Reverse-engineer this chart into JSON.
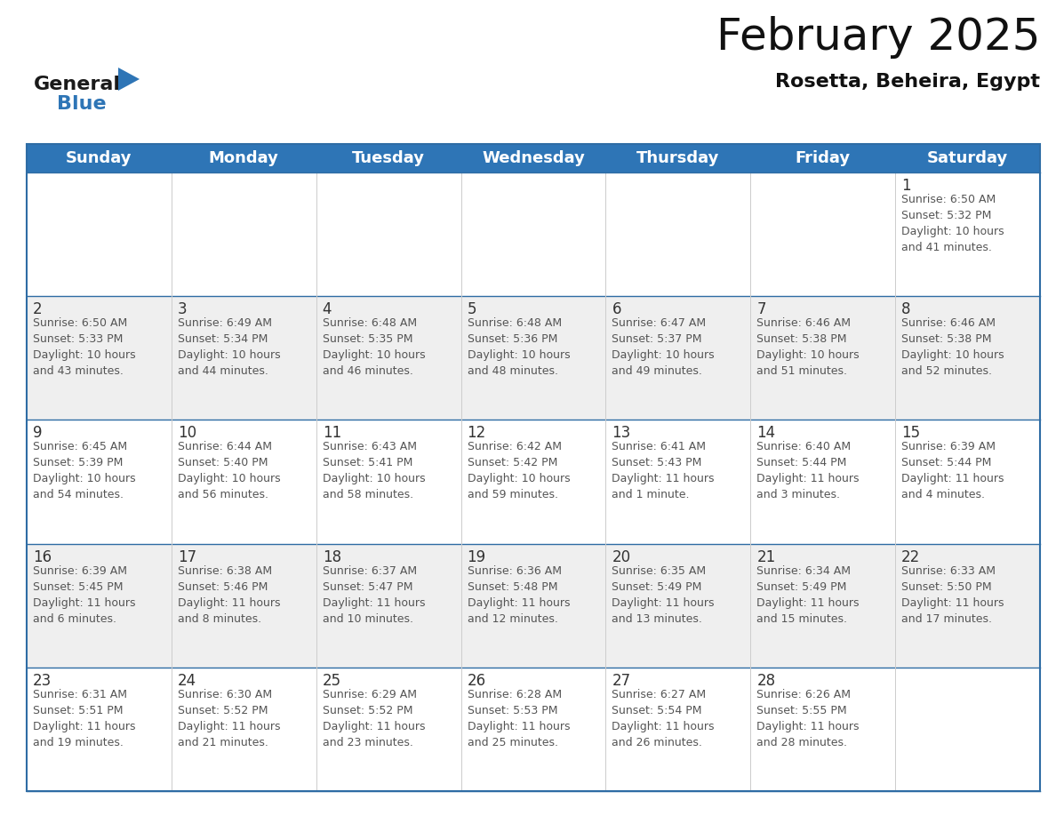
{
  "title": "February 2025",
  "subtitle": "Rosetta, Beheira, Egypt",
  "header_bg": "#2E75B6",
  "header_text_color": "#FFFFFF",
  "weekdays": [
    "Sunday",
    "Monday",
    "Tuesday",
    "Wednesday",
    "Thursday",
    "Friday",
    "Saturday"
  ],
  "bg_color": "#FFFFFF",
  "cell_bg_even": "#FFFFFF",
  "cell_bg_odd": "#EFEFEF",
  "border_color": "#2E6CA4",
  "row_line_color": "#2E6CA4",
  "col_line_color": "#CCCCCC",
  "day_text_color": "#333333",
  "info_text_color": "#555555",
  "calendar": [
    [
      {
        "day": "",
        "info": ""
      },
      {
        "day": "",
        "info": ""
      },
      {
        "day": "",
        "info": ""
      },
      {
        "day": "",
        "info": ""
      },
      {
        "day": "",
        "info": ""
      },
      {
        "day": "",
        "info": ""
      },
      {
        "day": "1",
        "info": "Sunrise: 6:50 AM\nSunset: 5:32 PM\nDaylight: 10 hours\nand 41 minutes."
      }
    ],
    [
      {
        "day": "2",
        "info": "Sunrise: 6:50 AM\nSunset: 5:33 PM\nDaylight: 10 hours\nand 43 minutes."
      },
      {
        "day": "3",
        "info": "Sunrise: 6:49 AM\nSunset: 5:34 PM\nDaylight: 10 hours\nand 44 minutes."
      },
      {
        "day": "4",
        "info": "Sunrise: 6:48 AM\nSunset: 5:35 PM\nDaylight: 10 hours\nand 46 minutes."
      },
      {
        "day": "5",
        "info": "Sunrise: 6:48 AM\nSunset: 5:36 PM\nDaylight: 10 hours\nand 48 minutes."
      },
      {
        "day": "6",
        "info": "Sunrise: 6:47 AM\nSunset: 5:37 PM\nDaylight: 10 hours\nand 49 minutes."
      },
      {
        "day": "7",
        "info": "Sunrise: 6:46 AM\nSunset: 5:38 PM\nDaylight: 10 hours\nand 51 minutes."
      },
      {
        "day": "8",
        "info": "Sunrise: 6:46 AM\nSunset: 5:38 PM\nDaylight: 10 hours\nand 52 minutes."
      }
    ],
    [
      {
        "day": "9",
        "info": "Sunrise: 6:45 AM\nSunset: 5:39 PM\nDaylight: 10 hours\nand 54 minutes."
      },
      {
        "day": "10",
        "info": "Sunrise: 6:44 AM\nSunset: 5:40 PM\nDaylight: 10 hours\nand 56 minutes."
      },
      {
        "day": "11",
        "info": "Sunrise: 6:43 AM\nSunset: 5:41 PM\nDaylight: 10 hours\nand 58 minutes."
      },
      {
        "day": "12",
        "info": "Sunrise: 6:42 AM\nSunset: 5:42 PM\nDaylight: 10 hours\nand 59 minutes."
      },
      {
        "day": "13",
        "info": "Sunrise: 6:41 AM\nSunset: 5:43 PM\nDaylight: 11 hours\nand 1 minute."
      },
      {
        "day": "14",
        "info": "Sunrise: 6:40 AM\nSunset: 5:44 PM\nDaylight: 11 hours\nand 3 minutes."
      },
      {
        "day": "15",
        "info": "Sunrise: 6:39 AM\nSunset: 5:44 PM\nDaylight: 11 hours\nand 4 minutes."
      }
    ],
    [
      {
        "day": "16",
        "info": "Sunrise: 6:39 AM\nSunset: 5:45 PM\nDaylight: 11 hours\nand 6 minutes."
      },
      {
        "day": "17",
        "info": "Sunrise: 6:38 AM\nSunset: 5:46 PM\nDaylight: 11 hours\nand 8 minutes."
      },
      {
        "day": "18",
        "info": "Sunrise: 6:37 AM\nSunset: 5:47 PM\nDaylight: 11 hours\nand 10 minutes."
      },
      {
        "day": "19",
        "info": "Sunrise: 6:36 AM\nSunset: 5:48 PM\nDaylight: 11 hours\nand 12 minutes."
      },
      {
        "day": "20",
        "info": "Sunrise: 6:35 AM\nSunset: 5:49 PM\nDaylight: 11 hours\nand 13 minutes."
      },
      {
        "day": "21",
        "info": "Sunrise: 6:34 AM\nSunset: 5:49 PM\nDaylight: 11 hours\nand 15 minutes."
      },
      {
        "day": "22",
        "info": "Sunrise: 6:33 AM\nSunset: 5:50 PM\nDaylight: 11 hours\nand 17 minutes."
      }
    ],
    [
      {
        "day": "23",
        "info": "Sunrise: 6:31 AM\nSunset: 5:51 PM\nDaylight: 11 hours\nand 19 minutes."
      },
      {
        "day": "24",
        "info": "Sunrise: 6:30 AM\nSunset: 5:52 PM\nDaylight: 11 hours\nand 21 minutes."
      },
      {
        "day": "25",
        "info": "Sunrise: 6:29 AM\nSunset: 5:52 PM\nDaylight: 11 hours\nand 23 minutes."
      },
      {
        "day": "26",
        "info": "Sunrise: 6:28 AM\nSunset: 5:53 PM\nDaylight: 11 hours\nand 25 minutes."
      },
      {
        "day": "27",
        "info": "Sunrise: 6:27 AM\nSunset: 5:54 PM\nDaylight: 11 hours\nand 26 minutes."
      },
      {
        "day": "28",
        "info": "Sunrise: 6:26 AM\nSunset: 5:55 PM\nDaylight: 11 hours\nand 28 minutes."
      },
      {
        "day": "",
        "info": ""
      }
    ]
  ],
  "logo_text1": "General",
  "logo_text2": "Blue",
  "logo_color1": "#1a1a1a",
  "logo_color2": "#2E75B6",
  "logo_triangle_color": "#2E75B6",
  "title_fontsize": 36,
  "subtitle_fontsize": 16,
  "header_fontsize": 13,
  "day_fontsize": 12,
  "info_fontsize": 9
}
